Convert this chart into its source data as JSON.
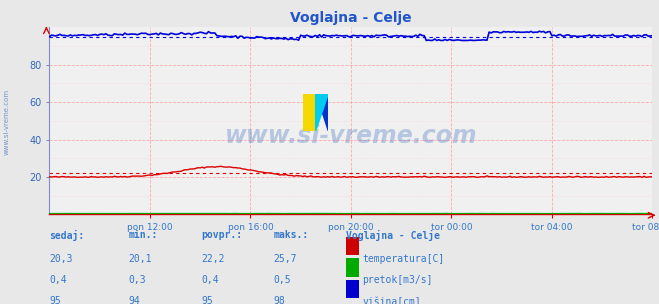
{
  "title": "Voglajna - Celje",
  "bg_color": "#e8e8e8",
  "plot_bg_color": "#f0f0f0",
  "grid_color_major": "#ffaaaa",
  "grid_color_minor": "#ffcccc",
  "x_labels": [
    "pon 12:00",
    "pon 16:00",
    "pon 20:00",
    "tor 00:00",
    "tor 04:00",
    "tor 08:00"
  ],
  "x_ticks_norm": [
    0.1667,
    0.3333,
    0.5,
    0.6667,
    0.8333,
    1.0
  ],
  "y_min": 0,
  "y_max": 100,
  "y_ticks": [
    20,
    40,
    60,
    80
  ],
  "watermark": "www.si-vreme.com",
  "watermark_color": "#3366bb",
  "watermark_alpha": 0.3,
  "sidebar_text": "www.si-vreme.com",
  "sidebar_color": "#3366bb",
  "title_color": "#2255cc",
  "title_fontsize": 10,
  "temp_color": "#dd0000",
  "pretok_color": "#00aa00",
  "visina_color": "#0000dd",
  "n_points": 289,
  "temp_avg": 22.2,
  "pretok_avg": 0.4,
  "visina_avg": 95.0,
  "table_headers": [
    "sedaj:",
    "min.:",
    "povpr.:",
    "maks.:"
  ],
  "table_col_label": "Voglajna - Celje",
  "row_labels": [
    "temperatura[C]",
    "pretok[m3/s]",
    "višina[cm]"
  ],
  "row_colors": [
    "#cc0000",
    "#00aa00",
    "#0000cc"
  ],
  "row_values_sedaj": [
    "20,3",
    "0,4",
    "95"
  ],
  "row_values_min": [
    "20,1",
    "0,3",
    "94"
  ],
  "row_values_povpr": [
    "22,2",
    "0,4",
    "95"
  ],
  "row_values_maks": [
    "25,7",
    "0,5",
    "98"
  ],
  "table_text_color": "#3377cc",
  "table_header_color": "#3377cc"
}
